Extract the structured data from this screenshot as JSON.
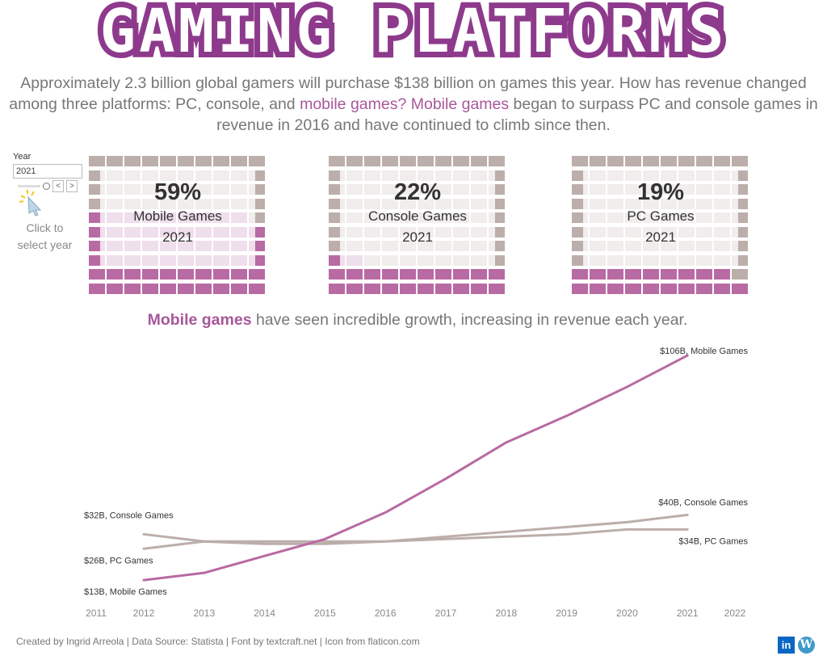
{
  "title": "GAMING PLATFORMS",
  "intro": {
    "part1": "Approximately 2.3 billion global gamers will purchase  $138 billion on games this year. How has revenue changed among three platforms: PC, console, and ",
    "hl1": "mobile games?",
    "part2": " ",
    "hl2": "Mobile games",
    "part3": " began to surpass PC and console games in revenue in 2016 and have continued to climb since then."
  },
  "filter": {
    "label": "Year",
    "value": "2021",
    "prev": "<",
    "next": ">",
    "hint": "Click to select year"
  },
  "colors": {
    "accent": "#b86aa3",
    "muted": "#bcaeaa",
    "empty": "#efebea",
    "text_accent": "#a8579a"
  },
  "waffles": [
    {
      "pct": "59%",
      "value": 59,
      "label": "Mobile Games",
      "year": "2021"
    },
    {
      "pct": "22%",
      "value": 22,
      "label": "Console Games",
      "year": "2021"
    },
    {
      "pct": "19%",
      "value": 19,
      "label": "PC Games",
      "year": "2021"
    }
  ],
  "subhead": {
    "hl": "Mobile games",
    "rest": " have seen incredible growth, increasing in revenue each year."
  },
  "chart_data": {
    "type": "line",
    "x_ticks": [
      "2011",
      "2012",
      "2013",
      "2014",
      "2015",
      "2016",
      "2017",
      "2018",
      "2019",
      "2020",
      "2021",
      "2022"
    ],
    "x": [
      2012,
      2013,
      2014,
      2015,
      2016,
      2017,
      2018,
      2019,
      2020,
      2021
    ],
    "unit": "$B",
    "grid": false,
    "series": [
      {
        "name": "Mobile Games",
        "color": "#b86aa3",
        "values": [
          13,
          16,
          23,
          30,
          41,
          55,
          70,
          81,
          93,
          106
        ],
        "start_label": "$13B, Mobile Games",
        "end_label": "$106B, Mobile Games"
      },
      {
        "name": "Console Games",
        "color": "#bcaeaa",
        "values": [
          32,
          29,
          28,
          28,
          29,
          31,
          33,
          35,
          37,
          40
        ],
        "start_label": "$32B, Console Games",
        "end_label": "$40B, Console Games"
      },
      {
        "name": "PC Games",
        "color": "#bcaeaa",
        "values": [
          26,
          29,
          29,
          29,
          29,
          30,
          31,
          32,
          34,
          34
        ],
        "start_label": "$26B, PC Games",
        "end_label": "$34B, PC Games"
      }
    ]
  },
  "footer": "Created by Ingrid Arreola | Data Source: Statista | Font by textcraft.net | Icon from flaticon.com",
  "social": {
    "linkedin": "in",
    "wordpress": "W"
  }
}
